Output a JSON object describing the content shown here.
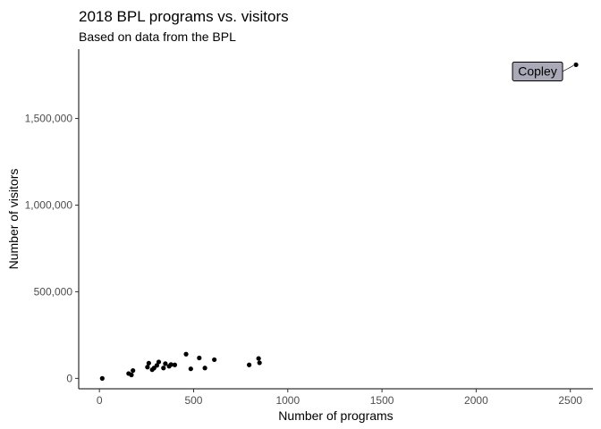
{
  "chart_data": {
    "type": "scatter",
    "title": "2018 BPL programs vs. visitors",
    "subtitle": "Based on data from the BPL",
    "xlabel": "Number of programs",
    "ylabel": "Number of visitors",
    "xlim": [
      -110,
      2620
    ],
    "ylim": [
      -60000,
      1900000
    ],
    "x_ticks": [
      0,
      500,
      1000,
      1500,
      2000,
      2500
    ],
    "x_tick_labels": [
      "0",
      "500",
      "1000",
      "1500",
      "2000",
      "2500"
    ],
    "y_ticks": [
      0,
      500000,
      1000000,
      1500000
    ],
    "y_tick_labels": [
      "0",
      "500,000",
      "1,000,000",
      "1,500,000"
    ],
    "grid": false,
    "legend": "none",
    "point_color": "#000000",
    "points": [
      {
        "x": 15,
        "y": 0
      },
      {
        "x": 155,
        "y": 28000
      },
      {
        "x": 170,
        "y": 20000
      },
      {
        "x": 178,
        "y": 45000
      },
      {
        "x": 255,
        "y": 65000
      },
      {
        "x": 262,
        "y": 88000
      },
      {
        "x": 280,
        "y": 50000
      },
      {
        "x": 290,
        "y": 60000
      },
      {
        "x": 305,
        "y": 75000
      },
      {
        "x": 315,
        "y": 95000
      },
      {
        "x": 340,
        "y": 60000
      },
      {
        "x": 350,
        "y": 85000
      },
      {
        "x": 370,
        "y": 70000
      },
      {
        "x": 380,
        "y": 80000
      },
      {
        "x": 400,
        "y": 78000
      },
      {
        "x": 460,
        "y": 140000
      },
      {
        "x": 485,
        "y": 55000
      },
      {
        "x": 530,
        "y": 118000
      },
      {
        "x": 560,
        "y": 60000
      },
      {
        "x": 610,
        "y": 108000
      },
      {
        "x": 795,
        "y": 78000
      },
      {
        "x": 845,
        "y": 115000
      },
      {
        "x": 850,
        "y": 90000
      },
      {
        "x": 2530,
        "y": 1810000
      }
    ],
    "annotations": [
      {
        "label": "Copley",
        "x": 2530,
        "y": 1810000,
        "fill": "#a9a9b8"
      }
    ]
  }
}
